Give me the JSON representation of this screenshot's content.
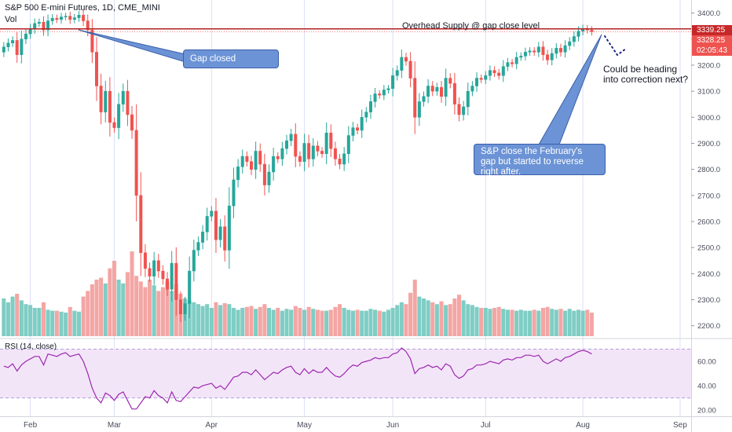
{
  "header": {
    "symbol_line": "S&P 500 E-mini Futures, 1D, CME_MINI",
    "volume_label": "Vol",
    "rsi_label": "RSI (14, close)"
  },
  "colors": {
    "up": "#26a69a",
    "down": "#ef5350",
    "up_vol": "#7fcdc4",
    "down_vol": "#f3a6a4",
    "rsi_line": "#9c27b0",
    "rsi_band": "#f3e5f8",
    "overhead_line": "#b22222",
    "callout_fill": "#6b93d6",
    "grid": "#e1e3eb"
  },
  "price_tags": [
    {
      "value": "3339.25",
      "bg": "#c62828",
      "fg": "#ffffff"
    },
    {
      "value": "3328.25",
      "bg": "#ef5350",
      "fg": "#ffffff"
    },
    {
      "value": "02:05:43",
      "bg": "#ef5350",
      "fg": "#ffffff"
    }
  ],
  "annotations": {
    "overhead_supply": "Overhead Supply @ gap close level",
    "gap_closed": "Gap closed",
    "sp_close_note": "S&P close the February's gap but started to reverse right after.",
    "correction_note": "Could be heading into correction next?"
  },
  "chart_data": {
    "type": "candlestick",
    "overhead_level": 3339.25,
    "last_price": 3328.25,
    "price_axis": {
      "ticks": [
        2200,
        2300,
        2400,
        2500,
        2600,
        2700,
        2800,
        2900,
        3000,
        3100,
        3200,
        3300,
        3400
      ],
      "range": [
        2160,
        3450
      ]
    },
    "rsi_axis": {
      "ticks": [
        20,
        40,
        60
      ],
      "band": [
        30,
        70
      ],
      "range": [
        15,
        78
      ]
    },
    "x_axis": {
      "labels": [
        "Feb",
        "Mar",
        "Apr",
        "May",
        "Jun",
        "Jul",
        "Aug",
        "Sep"
      ],
      "label_index": [
        6,
        25,
        47,
        68,
        88,
        109,
        131,
        153
      ],
      "total_slots": 156
    },
    "closes": [
      3270,
      3285,
      3295,
      3240,
      3300,
      3320,
      3340,
      3360,
      3365,
      3335,
      3370,
      3380,
      3375,
      3385,
      3388,
      3375,
      3382,
      3392,
      3370,
      3335,
      3250,
      3120,
      3020,
      3100,
      2980,
      2960,
      3050,
      3100,
      3010,
      2950,
      2700,
      2480,
      2420,
      2390,
      2450,
      2410,
      2380,
      2340,
      2440,
      2300,
      2245,
      2285,
      2410,
      2490,
      2520,
      2560,
      2620,
      2640,
      2530,
      2580,
      2490,
      2660,
      2760,
      2810,
      2850,
      2830,
      2800,
      2870,
      2820,
      2740,
      2790,
      2850,
      2840,
      2880,
      2910,
      2935,
      2850,
      2830,
      2900,
      2840,
      2890,
      2870,
      2860,
      2940,
      2880,
      2840,
      2820,
      2860,
      2930,
      2960,
      2950,
      3000,
      3020,
      3060,
      3090,
      3085,
      3105,
      3110,
      3160,
      3180,
      3230,
      3215,
      3150,
      3000,
      3060,
      3080,
      3120,
      3100,
      3115,
      3080,
      3150,
      3130,
      3050,
      3010,
      3040,
      3100,
      3120,
      3150,
      3145,
      3160,
      3180,
      3170,
      3160,
      3195,
      3210,
      3205,
      3230,
      3235,
      3250,
      3255,
      3250,
      3270,
      3240,
      3220,
      3245,
      3265,
      3250,
      3275,
      3290,
      3310,
      3330,
      3340,
      3335,
      3328
    ],
    "rsi": [
      56,
      55,
      58,
      52,
      57,
      60,
      62,
      64,
      64,
      57,
      66,
      65,
      64,
      66,
      67,
      64,
      65,
      66,
      60,
      50,
      38,
      30,
      26,
      34,
      32,
      28,
      33,
      35,
      28,
      21,
      21,
      26,
      31,
      30,
      36,
      32,
      30,
      26,
      35,
      28,
      27,
      31,
      35,
      39,
      38,
      40,
      41,
      42,
      38,
      40,
      37,
      42,
      47,
      48,
      51,
      51,
      49,
      53,
      49,
      45,
      48,
      51,
      50,
      53,
      55,
      56,
      51,
      49,
      54,
      50,
      53,
      51,
      51,
      55,
      51,
      48,
      47,
      50,
      54,
      57,
      56,
      59,
      60,
      61,
      63,
      62,
      63,
      63,
      66,
      67,
      71,
      68,
      62,
      50,
      54,
      55,
      57,
      55,
      56,
      53,
      58,
      56,
      49,
      46,
      48,
      53,
      54,
      57,
      57,
      58,
      60,
      59,
      58,
      61,
      62,
      61,
      63,
      63,
      65,
      65,
      64,
      65,
      60,
      58,
      60,
      62,
      60,
      63,
      64,
      66,
      68,
      69,
      68,
      66
    ],
    "volume": [
      0.4,
      0.36,
      0.42,
      0.45,
      0.38,
      0.34,
      0.33,
      0.3,
      0.3,
      0.36,
      0.28,
      0.27,
      0.27,
      0.26,
      0.25,
      0.31,
      0.27,
      0.26,
      0.42,
      0.48,
      0.55,
      0.6,
      0.62,
      0.56,
      0.72,
      0.8,
      0.6,
      0.56,
      0.68,
      0.9,
      0.64,
      0.58,
      0.52,
      0.6,
      0.54,
      0.48,
      0.52,
      0.58,
      0.48,
      0.55,
      0.45,
      0.4,
      0.38,
      0.36,
      0.34,
      0.32,
      0.34,
      0.3,
      0.36,
      0.33,
      0.35,
      0.34,
      0.3,
      0.28,
      0.3,
      0.31,
      0.32,
      0.29,
      0.31,
      0.34,
      0.3,
      0.28,
      0.3,
      0.27,
      0.29,
      0.28,
      0.32,
      0.3,
      0.28,
      0.31,
      0.29,
      0.28,
      0.27,
      0.27,
      0.28,
      0.31,
      0.34,
      0.3,
      0.28,
      0.27,
      0.28,
      0.27,
      0.27,
      0.29,
      0.28,
      0.27,
      0.26,
      0.28,
      0.3,
      0.33,
      0.36,
      0.34,
      0.46,
      0.6,
      0.42,
      0.4,
      0.38,
      0.36,
      0.34,
      0.37,
      0.33,
      0.34,
      0.4,
      0.44,
      0.38,
      0.34,
      0.33,
      0.31,
      0.3,
      0.3,
      0.29,
      0.3,
      0.31,
      0.29,
      0.28,
      0.28,
      0.27,
      0.28,
      0.27,
      0.27,
      0.28,
      0.27,
      0.3,
      0.31,
      0.29,
      0.28,
      0.29,
      0.27,
      0.29,
      0.27,
      0.28,
      0.27,
      0.28,
      0.25
    ]
  }
}
